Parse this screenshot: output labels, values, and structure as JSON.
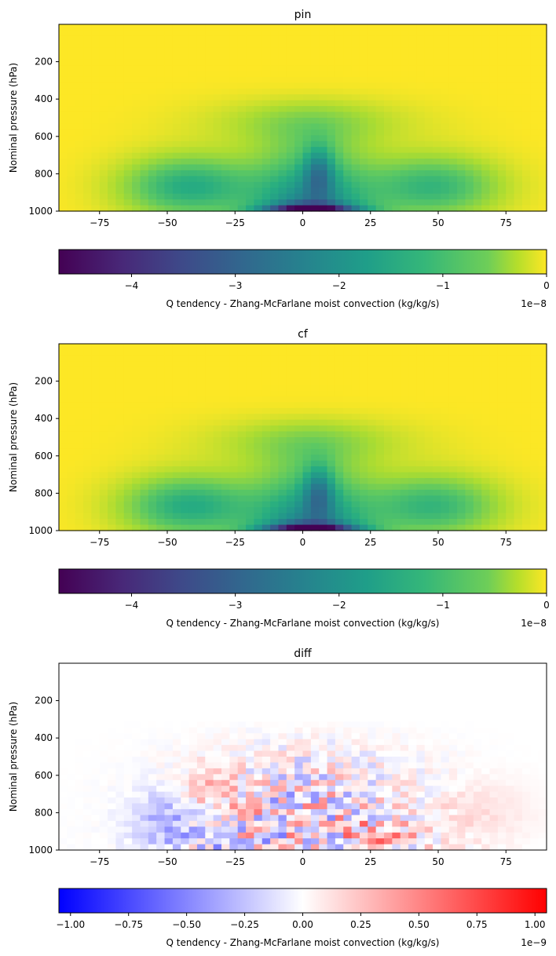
{
  "chart_data": [
    {
      "type": "heatmap",
      "title": "pin",
      "xlabel": "",
      "ylabel": "Nominal pressure (hPa)",
      "xlim": [
        -90,
        90
      ],
      "ylim": [
        1000,
        0
      ],
      "xticks": [
        -75,
        -50,
        -25,
        0,
        25,
        50,
        75
      ],
      "xtick_labels": [
        "−75",
        "−50",
        "−25",
        "0",
        "25",
        "50",
        "75"
      ],
      "yticks": [
        200,
        400,
        600,
        800,
        1000
      ],
      "ytick_labels": [
        "200",
        "400",
        "600",
        "800",
        "1000"
      ],
      "colormap": "viridis",
      "colorbar": {
        "label": "Q tendency - Zhang-McFarlane moist convection (kg/kg/s)",
        "range": [
          -4.7e-08,
          0
        ],
        "ticks": [
          -4,
          -3,
          -2,
          -1,
          0
        ],
        "tick_labels": [
          "−4",
          "−3",
          "−2",
          "−1",
          "0"
        ],
        "offset_text": "1e−8",
        "orientation": "horizontal"
      }
    },
    {
      "type": "heatmap",
      "title": "cf",
      "xlabel": "",
      "ylabel": "Nominal pressure (hPa)",
      "xlim": [
        -90,
        90
      ],
      "ylim": [
        1000,
        0
      ],
      "xticks": [
        -75,
        -50,
        -25,
        0,
        25,
        50,
        75
      ],
      "xtick_labels": [
        "−75",
        "−50",
        "−25",
        "0",
        "25",
        "50",
        "75"
      ],
      "yticks": [
        200,
        400,
        600,
        800,
        1000
      ],
      "ytick_labels": [
        "200",
        "400",
        "600",
        "800",
        "1000"
      ],
      "colormap": "viridis",
      "colorbar": {
        "label": "Q tendency - Zhang-McFarlane moist convection (kg/kg/s)",
        "range": [
          -4.7e-08,
          0
        ],
        "ticks": [
          -4,
          -3,
          -2,
          -1,
          0
        ],
        "tick_labels": [
          "−4",
          "−3",
          "−2",
          "−1",
          "0"
        ],
        "offset_text": "1e−8",
        "orientation": "horizontal"
      }
    },
    {
      "type": "heatmap",
      "title": "diff",
      "xlabel": "",
      "ylabel": "Nominal pressure (hPa)",
      "xlim": [
        -90,
        90
      ],
      "ylim": [
        1000,
        0
      ],
      "xticks": [
        -75,
        -50,
        -25,
        0,
        25,
        50,
        75
      ],
      "xtick_labels": [
        "−75",
        "−50",
        "−25",
        "0",
        "25",
        "50",
        "75"
      ],
      "yticks": [
        200,
        400,
        600,
        800,
        1000
      ],
      "ytick_labels": [
        "200",
        "400",
        "600",
        "800",
        "1000"
      ],
      "colormap": "bwr",
      "colorbar": {
        "label": "Q tendency - Zhang-McFarlane moist convection (kg/kg/s)",
        "range": [
          -1.05e-09,
          1.05e-09
        ],
        "ticks": [
          -1.0,
          -0.75,
          -0.5,
          -0.25,
          0.0,
          0.25,
          0.5,
          0.75,
          1.0
        ],
        "tick_labels": [
          "−1.00",
          "−0.75",
          "−0.50",
          "−0.25",
          "0.00",
          "0.25",
          "0.50",
          "0.75",
          "1.00"
        ],
        "offset_text": "1e−9",
        "orientation": "horizontal"
      }
    }
  ]
}
